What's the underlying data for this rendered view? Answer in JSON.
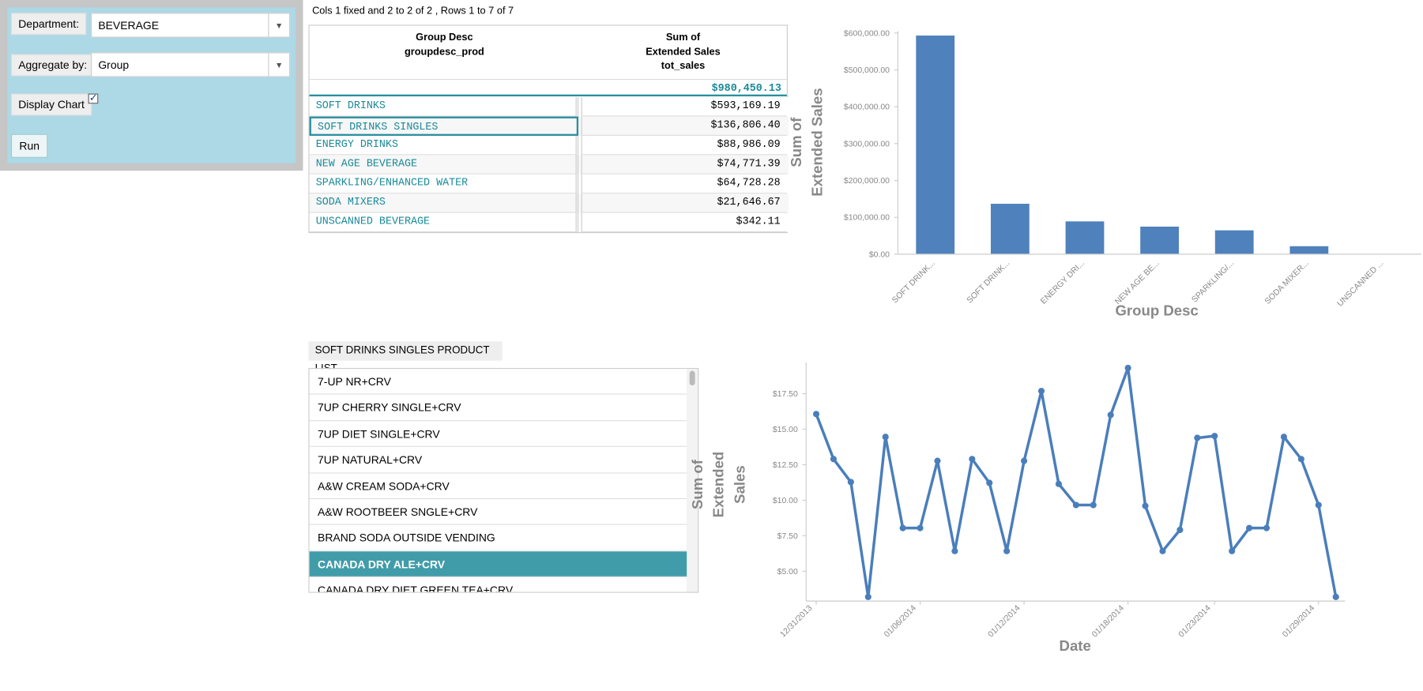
{
  "form": {
    "department_label": "Department:",
    "department_value": "BEVERAGE",
    "aggregate_label": "Aggregate by:",
    "aggregate_value": "Group",
    "display_chart_label": "Display Chart",
    "display_chart": true,
    "run": "Run"
  },
  "table": {
    "info": "Cols 1 fixed and 2 to 2 of 2 , Rows 1 to 7 of 7",
    "headers": [
      [
        "Group Desc",
        "groupdesc_prod"
      ],
      [
        "Sum of",
        "Extended Sales",
        "tot_sales"
      ]
    ],
    "total": "$980,450.13",
    "selected_row": 1,
    "rows": [
      [
        "SOFT DRINKS",
        "$593,169.19"
      ],
      [
        "SOFT DRINKS SINGLES",
        "$136,806.40"
      ],
      [
        "ENERGY DRINKS",
        "$88,986.09"
      ],
      [
        "NEW AGE BEVERAGE",
        "$74,771.39"
      ],
      [
        "SPARKLING/ENHANCED WATER",
        "$64,728.28"
      ],
      [
        "SODA MIXERS",
        "$21,646.67"
      ],
      [
        "UNSCANNED BEVERAGE",
        "$342.11"
      ]
    ]
  },
  "product_list": {
    "title": "SOFT DRINKS SINGLES PRODUCT LIST",
    "selected": 7,
    "items": [
      "7-UP NR+CRV",
      "7UP CHERRY SINGLE+CRV",
      "7UP DIET SINGLE+CRV",
      "7UP NATURAL+CRV",
      "A&W CREAM SODA+CRV",
      "A&W ROOTBEER SNGLE+CRV",
      "BRAND SODA OUTSIDE VENDING",
      "CANADA DRY ALE+CRV",
      "CANADA DRY DIET GREEN TEA+CRV"
    ]
  },
  "chart_data": [
    {
      "type": "bar",
      "color": "#4f81bd",
      "xlabel": "Group Desc",
      "ylabel": [
        "Sum of",
        "Extended Sales"
      ],
      "categories": [
        "SOFT DRINK...",
        "SOFT DRINK...",
        "ENERGY DRI...",
        "NEW AGE BE...",
        "SPARKLING/...",
        "SODA MIXER...",
        "UNSCANNED ..."
      ],
      "values": [
        593169.19,
        136806.4,
        88986.09,
        74771.39,
        64728.28,
        21646.67,
        342.11
      ],
      "ylim": [
        0,
        600000
      ],
      "yticks": [
        {
          "value": 0,
          "label": "$0.00"
        },
        {
          "value": 100000,
          "label": "$100,000.00"
        },
        {
          "value": 200000,
          "label": "$200,000.00"
        },
        {
          "value": 300000,
          "label": "$300,000.00"
        },
        {
          "value": 400000,
          "label": "$400,000.00"
        },
        {
          "value": 500000,
          "label": "$500,000.00"
        },
        {
          "value": 600000,
          "label": "$600,000.00"
        }
      ]
    },
    {
      "type": "line",
      "color": "#4a7ebb",
      "xlabel": "Date",
      "ylabel": [
        "Sum of",
        "Extended",
        "Sales"
      ],
      "x": [
        "12/31/2013",
        "01/01/2014",
        "01/02/2014",
        "01/03/2014",
        "01/04/2014",
        "01/05/2014",
        "01/06/2014",
        "01/07/2014",
        "01/08/2014",
        "01/09/2014",
        "01/10/2014",
        "01/11/2014",
        "01/12/2014",
        "01/13/2014",
        "01/14/2014",
        "01/15/2014",
        "01/16/2014",
        "01/17/2014",
        "01/18/2014",
        "01/19/2014",
        "01/20/2014",
        "01/21/2014",
        "01/22/2014",
        "01/23/2014",
        "01/24/2014",
        "01/25/2014",
        "01/26/2014",
        "01/27/2014",
        "01/28/2014",
        "01/29/2014",
        "01/30/2014"
      ],
      "values": [
        16.07,
        12.9,
        11.28,
        3.19,
        14.46,
        8.04,
        8.04,
        12.77,
        6.42,
        12.9,
        11.22,
        6.42,
        12.77,
        17.69,
        11.15,
        9.66,
        9.66,
        16.01,
        19.31,
        9.6,
        6.42,
        7.91,
        14.39,
        14.52,
        6.42,
        8.04,
        8.04,
        14.46,
        12.9,
        9.66,
        3.19
      ],
      "xticks": [
        "12/31/2013",
        "01/06/2014",
        "01/12/2014",
        "01/18/2014",
        "01/23/2014",
        "01/29/2014"
      ],
      "ylim": [
        2.9,
        19.7
      ],
      "yticks": [
        {
          "value": 5,
          "label": "$5.00"
        },
        {
          "value": 7.5,
          "label": "$7.50"
        },
        {
          "value": 10,
          "label": "$10.00"
        },
        {
          "value": 12.5,
          "label": "$12.50"
        },
        {
          "value": 15,
          "label": "$15.00"
        },
        {
          "value": 17.5,
          "label": "$17.50"
        }
      ]
    }
  ]
}
